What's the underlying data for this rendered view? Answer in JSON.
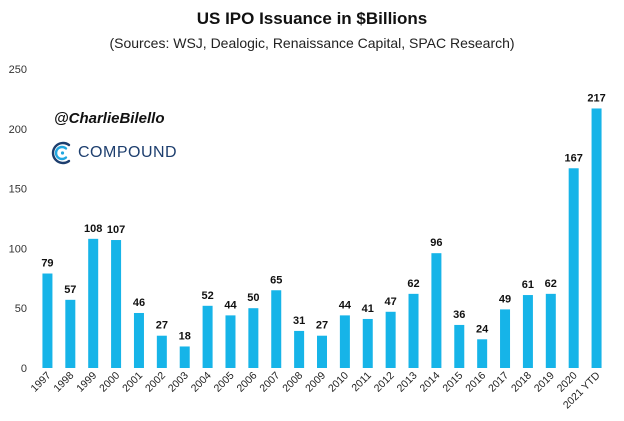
{
  "chart_data": {
    "type": "bar",
    "title": "US IPO Issuance in $Billions",
    "subtitle": "(Sources: WSJ, Dealogic, Renaissance Capital, SPAC Research)",
    "categories": [
      "1997",
      "1998",
      "1999",
      "2000",
      "2001",
      "2002",
      "2003",
      "2004",
      "2005",
      "2006",
      "2007",
      "2008",
      "2009",
      "2010",
      "2011",
      "2012",
      "2013",
      "2014",
      "2015",
      "2016",
      "2017",
      "2018",
      "2019",
      "2020",
      "2021 YTD"
    ],
    "values": [
      79,
      57,
      108,
      107,
      46,
      27,
      18,
      52,
      44,
      50,
      65,
      31,
      27,
      44,
      41,
      47,
      62,
      96,
      36,
      24,
      49,
      61,
      62,
      167,
      217
    ],
    "ylim": [
      0,
      250
    ],
    "yticks": [
      0,
      50,
      100,
      150,
      200,
      250
    ],
    "xlabel": "",
    "ylabel": "",
    "bar_color": "#16b4e8",
    "grid": false
  },
  "annotations": {
    "handle": "@CharlieBilello",
    "brand": "COMPOUND"
  },
  "colors": {
    "brand": "#1d3e6e",
    "brand_accent": "#22a7e0"
  }
}
